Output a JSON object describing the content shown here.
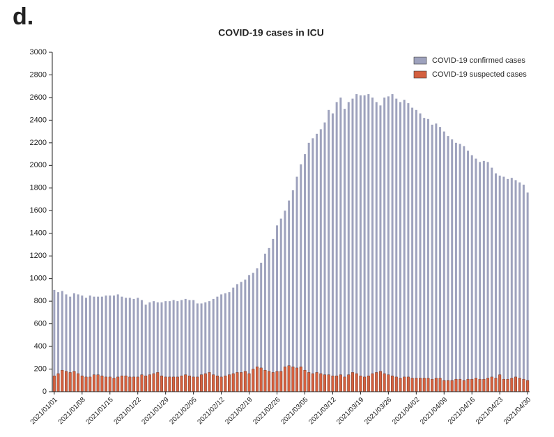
{
  "panel_label": "d.",
  "chart_data": {
    "type": "bar",
    "title": "COVID-19 cases in ICU",
    "categories": [
      "2021/01/01",
      null,
      null,
      null,
      null,
      null,
      null,
      "2021/01/08",
      null,
      null,
      null,
      null,
      null,
      null,
      "2021/01/15",
      null,
      null,
      null,
      null,
      null,
      null,
      "2021/01/22",
      null,
      null,
      null,
      null,
      null,
      null,
      "2021/01/29",
      null,
      null,
      null,
      null,
      null,
      null,
      "2021/02/05",
      null,
      null,
      null,
      null,
      null,
      null,
      "2021/02/12",
      null,
      null,
      null,
      null,
      null,
      null,
      "2021/02/19",
      null,
      null,
      null,
      null,
      null,
      null,
      "2021/02/26",
      null,
      null,
      null,
      null,
      null,
      null,
      "2021/03/05",
      null,
      null,
      null,
      null,
      null,
      null,
      "2021/03/12",
      null,
      null,
      null,
      null,
      null,
      null,
      "2021/03/19",
      null,
      null,
      null,
      null,
      null,
      null,
      "2021/03/26",
      null,
      null,
      null,
      null,
      null,
      null,
      "2021/04/02",
      null,
      null,
      null,
      null,
      null,
      null,
      "2021/04/09",
      null,
      null,
      null,
      null,
      null,
      null,
      "2021/04/16",
      null,
      null,
      null,
      null,
      null,
      null,
      "2021/04/23",
      null,
      null,
      null,
      null,
      null,
      null,
      "2021/04/30"
    ],
    "series": [
      {
        "name": "COVID-19 confirmed cases",
        "color": "#9ea2bd",
        "values": [
          900,
          880,
          890,
          860,
          840,
          870,
          860,
          850,
          830,
          850,
          840,
          840,
          840,
          850,
          850,
          850,
          860,
          840,
          830,
          830,
          820,
          830,
          810,
          770,
          790,
          800,
          790,
          790,
          800,
          800,
          810,
          800,
          810,
          820,
          810,
          810,
          780,
          780,
          790,
          800,
          820,
          840,
          860,
          870,
          880,
          920,
          950,
          970,
          990,
          1030,
          1050,
          1090,
          1140,
          1220,
          1270,
          1350,
          1470,
          1530,
          1600,
          1690,
          1780,
          1900,
          2010,
          2100,
          2200,
          2240,
          2280,
          2320,
          2380,
          2490,
          2460,
          2560,
          2600,
          2500,
          2560,
          2590,
          2630,
          2620,
          2620,
          2630,
          2600,
          2560,
          2530,
          2600,
          2610,
          2630,
          2590,
          2560,
          2580,
          2550,
          2510,
          2490,
          2460,
          2420,
          2410,
          2360,
          2370,
          2340,
          2300,
          2260,
          2230,
          2200,
          2190,
          2170,
          2130,
          2090,
          2060,
          2030,
          2040,
          2030,
          1980,
          1930,
          1910,
          1900,
          1880,
          1890,
          1870,
          1850,
          1830,
          1760
        ]
      },
      {
        "name": "COVID-19 suspected cases",
        "color": "#d4603f",
        "values": [
          140,
          160,
          190,
          180,
          170,
          180,
          160,
          140,
          130,
          130,
          150,
          150,
          140,
          130,
          130,
          120,
          130,
          140,
          140,
          130,
          130,
          130,
          150,
          140,
          150,
          160,
          170,
          140,
          130,
          130,
          130,
          130,
          140,
          150,
          140,
          130,
          130,
          150,
          160,
          170,
          150,
          140,
          130,
          140,
          150,
          160,
          170,
          170,
          180,
          160,
          200,
          220,
          210,
          190,
          180,
          170,
          180,
          180,
          220,
          230,
          220,
          210,
          220,
          190,
          170,
          160,
          170,
          160,
          150,
          150,
          140,
          140,
          150,
          130,
          150,
          170,
          160,
          140,
          130,
          140,
          160,
          170,
          180,
          160,
          150,
          140,
          130,
          120,
          130,
          130,
          120,
          120,
          120,
          120,
          120,
          110,
          120,
          120,
          100,
          100,
          100,
          110,
          110,
          100,
          110,
          110,
          120,
          110,
          110,
          120,
          130,
          120,
          150,
          110,
          110,
          120,
          130,
          120,
          110,
          100
        ]
      }
    ],
    "ylim": [
      0,
      3000
    ],
    "yticks": [
      0,
      200,
      400,
      600,
      800,
      1000,
      1200,
      1400,
      1600,
      1800,
      2000,
      2200,
      2400,
      2600,
      2800,
      3000
    ],
    "legend": "top-right"
  }
}
